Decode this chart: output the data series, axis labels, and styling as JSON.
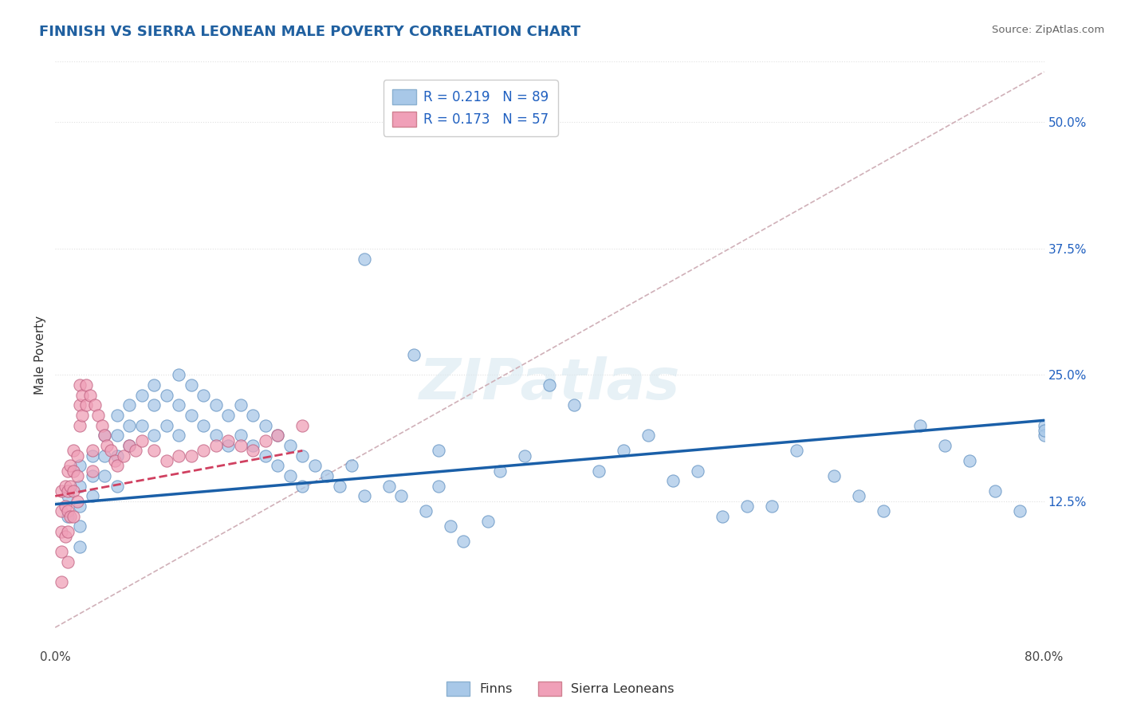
{
  "title": "FINNISH VS SIERRA LEONEAN MALE POVERTY CORRELATION CHART",
  "source": "Source: ZipAtlas.com",
  "ylabel": "Male Poverty",
  "xlim": [
    0.0,
    0.8
  ],
  "ylim": [
    -0.02,
    0.56
  ],
  "xticks": [
    0.0,
    0.1,
    0.2,
    0.3,
    0.4,
    0.5,
    0.6,
    0.7,
    0.8
  ],
  "xticklabels": [
    "0.0%",
    "",
    "",
    "",
    "",
    "",
    "",
    "",
    "80.0%"
  ],
  "yticks_right": [
    0.125,
    0.25,
    0.375,
    0.5
  ],
  "yticklabels_right": [
    "12.5%",
    "25.0%",
    "37.5%",
    "50.0%"
  ],
  "finn_color": "#a8c8e8",
  "sierra_color": "#f0a0b8",
  "finn_line_color": "#1a5fa8",
  "sierra_line_color": "#d04060",
  "diag_line_color": "#d0b0b8",
  "title_color": "#2060a0",
  "legend_text_color": "#2060c0",
  "R_finn": 0.219,
  "N_finn": 89,
  "R_sierra": 0.173,
  "N_sierra": 57,
  "background_color": "#ffffff",
  "grid_color": "#e0e0e0",
  "watermark": "ZIPatlas",
  "finn_scatter_x": [
    0.01,
    0.01,
    0.02,
    0.02,
    0.02,
    0.02,
    0.02,
    0.03,
    0.03,
    0.03,
    0.04,
    0.04,
    0.04,
    0.05,
    0.05,
    0.05,
    0.05,
    0.06,
    0.06,
    0.06,
    0.07,
    0.07,
    0.08,
    0.08,
    0.08,
    0.09,
    0.09,
    0.1,
    0.1,
    0.1,
    0.11,
    0.11,
    0.12,
    0.12,
    0.13,
    0.13,
    0.14,
    0.14,
    0.15,
    0.15,
    0.16,
    0.16,
    0.17,
    0.17,
    0.18,
    0.18,
    0.19,
    0.19,
    0.2,
    0.2,
    0.21,
    0.22,
    0.23,
    0.24,
    0.25,
    0.25,
    0.27,
    0.28,
    0.29,
    0.3,
    0.31,
    0.31,
    0.32,
    0.33,
    0.35,
    0.36,
    0.38,
    0.4,
    0.42,
    0.44,
    0.46,
    0.48,
    0.5,
    0.52,
    0.54,
    0.56,
    0.58,
    0.6,
    0.63,
    0.65,
    0.67,
    0.7,
    0.72,
    0.74,
    0.76,
    0.78,
    0.8,
    0.8,
    0.8
  ],
  "finn_scatter_y": [
    0.13,
    0.11,
    0.16,
    0.14,
    0.12,
    0.1,
    0.08,
    0.17,
    0.15,
    0.13,
    0.19,
    0.17,
    0.15,
    0.21,
    0.19,
    0.17,
    0.14,
    0.22,
    0.2,
    0.18,
    0.23,
    0.2,
    0.24,
    0.22,
    0.19,
    0.23,
    0.2,
    0.25,
    0.22,
    0.19,
    0.24,
    0.21,
    0.23,
    0.2,
    0.22,
    0.19,
    0.21,
    0.18,
    0.22,
    0.19,
    0.21,
    0.18,
    0.2,
    0.17,
    0.19,
    0.16,
    0.18,
    0.15,
    0.17,
    0.14,
    0.16,
    0.15,
    0.14,
    0.16,
    0.13,
    0.365,
    0.14,
    0.13,
    0.27,
    0.115,
    0.14,
    0.175,
    0.1,
    0.085,
    0.105,
    0.155,
    0.17,
    0.24,
    0.22,
    0.155,
    0.175,
    0.19,
    0.145,
    0.155,
    0.11,
    0.12,
    0.12,
    0.175,
    0.15,
    0.13,
    0.115,
    0.2,
    0.18,
    0.165,
    0.135,
    0.115,
    0.2,
    0.19,
    0.195
  ],
  "sierra_scatter_x": [
    0.005,
    0.005,
    0.005,
    0.005,
    0.005,
    0.008,
    0.008,
    0.008,
    0.01,
    0.01,
    0.01,
    0.01,
    0.01,
    0.012,
    0.012,
    0.012,
    0.015,
    0.015,
    0.015,
    0.015,
    0.018,
    0.018,
    0.018,
    0.02,
    0.02,
    0.02,
    0.022,
    0.022,
    0.025,
    0.025,
    0.028,
    0.03,
    0.03,
    0.032,
    0.035,
    0.038,
    0.04,
    0.042,
    0.045,
    0.048,
    0.05,
    0.055,
    0.06,
    0.065,
    0.07,
    0.08,
    0.09,
    0.1,
    0.11,
    0.12,
    0.13,
    0.14,
    0.15,
    0.16,
    0.17,
    0.18,
    0.2
  ],
  "sierra_scatter_y": [
    0.135,
    0.115,
    0.095,
    0.075,
    0.045,
    0.14,
    0.12,
    0.09,
    0.155,
    0.135,
    0.115,
    0.095,
    0.065,
    0.16,
    0.14,
    0.11,
    0.175,
    0.155,
    0.135,
    0.11,
    0.17,
    0.15,
    0.125,
    0.24,
    0.22,
    0.2,
    0.23,
    0.21,
    0.24,
    0.22,
    0.23,
    0.175,
    0.155,
    0.22,
    0.21,
    0.2,
    0.19,
    0.18,
    0.175,
    0.165,
    0.16,
    0.17,
    0.18,
    0.175,
    0.185,
    0.175,
    0.165,
    0.17,
    0.17,
    0.175,
    0.18,
    0.185,
    0.18,
    0.175,
    0.185,
    0.19,
    0.2
  ]
}
